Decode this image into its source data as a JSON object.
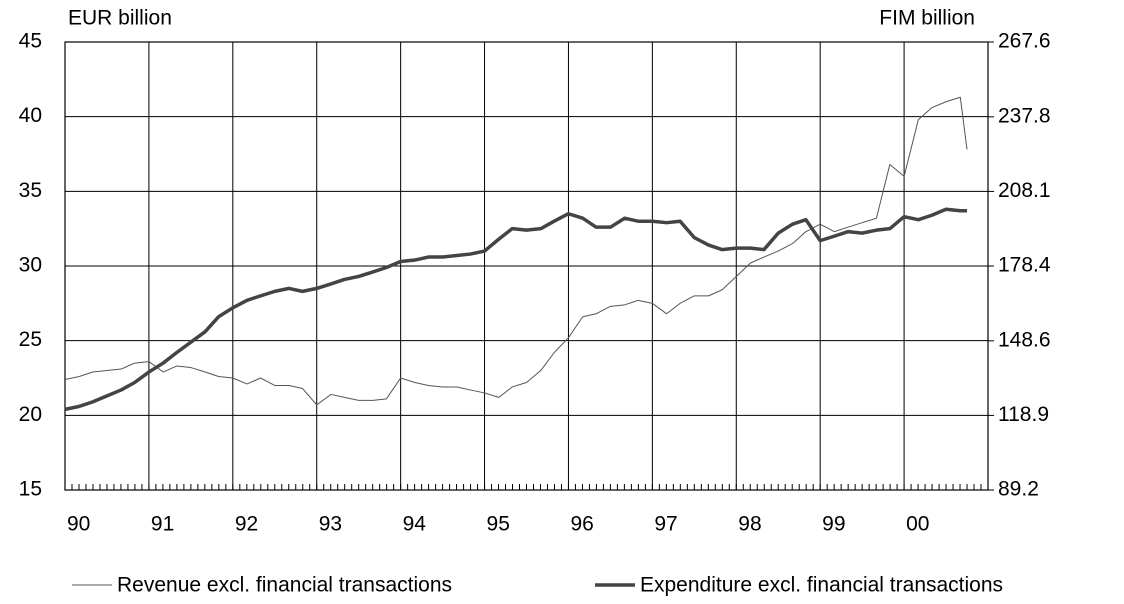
{
  "chart_data": {
    "type": "line",
    "y_label": "EUR billion",
    "y2_label": "FIM billion",
    "x": [
      1990,
      1990.17,
      1990.33,
      1990.5,
      1990.67,
      1990.83,
      1991,
      1991.17,
      1991.33,
      1991.5,
      1991.67,
      1991.83,
      1992,
      1992.17,
      1992.33,
      1992.5,
      1992.67,
      1992.83,
      1993,
      1993.17,
      1993.33,
      1993.5,
      1993.67,
      1993.83,
      1994,
      1994.17,
      1994.33,
      1994.5,
      1994.67,
      1994.83,
      1995,
      1995.17,
      1995.33,
      1995.5,
      1995.67,
      1995.83,
      1996,
      1996.17,
      1996.33,
      1996.5,
      1996.67,
      1996.83,
      1997,
      1997.17,
      1997.33,
      1997.5,
      1997.67,
      1997.83,
      1998,
      1998.17,
      1998.33,
      1998.5,
      1998.67,
      1998.83,
      1999,
      1999.17,
      1999.33,
      1999.5,
      1999.67,
      1999.83,
      2000,
      2000.17,
      2000.33,
      2000.5,
      2000.67,
      2000.75
    ],
    "series": [
      {
        "name": "Revenue excl. financial transactions",
        "color": "#555555",
        "width": 1,
        "values": [
          22.4,
          22.6,
          22.9,
          23.0,
          23.1,
          23.5,
          23.6,
          22.9,
          23.3,
          23.2,
          22.9,
          22.6,
          22.5,
          22.1,
          22.5,
          22.0,
          22.0,
          21.8,
          20.7,
          21.4,
          21.2,
          21.0,
          21.0,
          21.1,
          22.5,
          22.2,
          22.0,
          21.9,
          21.9,
          21.7,
          21.5,
          21.2,
          21.9,
          22.2,
          23.0,
          24.2,
          25.2,
          26.6,
          26.8,
          27.3,
          27.4,
          27.7,
          27.5,
          26.8,
          27.5,
          28.0,
          28.0,
          28.4,
          29.3,
          30.2,
          30.6,
          31.0,
          31.5,
          32.3,
          32.8,
          32.3,
          32.6,
          32.9,
          33.2,
          36.8,
          36.0,
          39.8,
          40.6,
          41.0,
          41.3,
          37.8
        ]
      },
      {
        "name": "Expenditure excl. financial transactions",
        "color": "#444444",
        "width": 3.5,
        "values": [
          20.4,
          20.6,
          20.9,
          21.3,
          21.7,
          22.2,
          22.9,
          23.5,
          24.2,
          24.9,
          25.6,
          26.6,
          27.2,
          27.7,
          28.0,
          28.3,
          28.5,
          28.3,
          28.5,
          28.8,
          29.1,
          29.3,
          29.6,
          29.9,
          30.3,
          30.4,
          30.6,
          30.6,
          30.7,
          30.8,
          31.0,
          31.8,
          32.5,
          32.4,
          32.5,
          33.0,
          33.5,
          33.2,
          32.6,
          32.6,
          33.2,
          33.0,
          33.0,
          32.9,
          33.0,
          31.9,
          31.4,
          31.1,
          31.2,
          31.2,
          31.1,
          32.2,
          32.8,
          33.1,
          31.7,
          32.0,
          32.3,
          32.2,
          32.4,
          32.5,
          33.3,
          33.1,
          33.4,
          33.8,
          33.7,
          33.7
        ]
      }
    ],
    "xlim": [
      1990,
      2001
    ],
    "xticks": [
      {
        "value": 1990,
        "label": "90"
      },
      {
        "value": 1991,
        "label": "91"
      },
      {
        "value": 1992,
        "label": "92"
      },
      {
        "value": 1993,
        "label": "93"
      },
      {
        "value": 1994,
        "label": "94"
      },
      {
        "value": 1995,
        "label": "95"
      },
      {
        "value": 1996,
        "label": "96"
      },
      {
        "value": 1997,
        "label": "97"
      },
      {
        "value": 1998,
        "label": "98"
      },
      {
        "value": 1999,
        "label": "99"
      },
      {
        "value": 2000,
        "label": "00"
      }
    ],
    "ylim": [
      15,
      45
    ],
    "yticks": [
      15,
      20,
      25,
      30,
      35,
      40,
      45
    ],
    "y2lim": [
      89.2,
      267.6
    ],
    "y2ticks": [
      89.2,
      118.9,
      148.6,
      178.4,
      208.1,
      237.8,
      267.6
    ],
    "grid": true,
    "legend": "bottom"
  }
}
